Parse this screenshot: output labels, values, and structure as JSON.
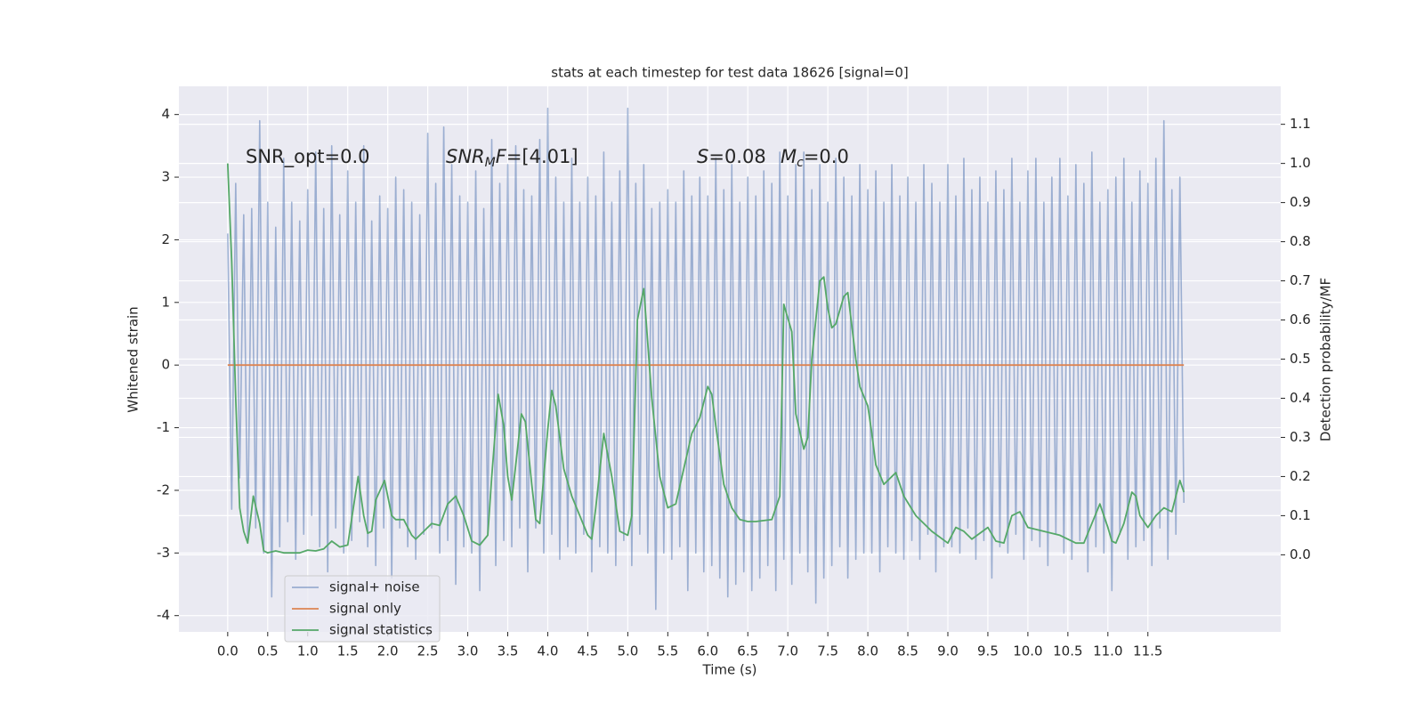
{
  "chart_data": {
    "type": "line",
    "title": "stats at each timestep for test data 18626 [signal=0]",
    "xlabel": "Time (s)",
    "ylabel": "Whitened strain",
    "y2label": "Detection probability/MF",
    "annotations": [
      [
        {
          "text": "SNR_opt=0.0"
        }
      ],
      [
        {
          "text": "SNR",
          "style": "italic"
        },
        {
          "text": "M",
          "style": "italic-sub"
        },
        {
          "text": "F",
          "style": "italic"
        },
        {
          "text": "=[4.01]"
        }
      ],
      [
        {
          "text": "S",
          "style": "italic"
        },
        {
          "text": "=0.08"
        }
      ],
      [
        {
          "text": "M",
          "style": "italic"
        },
        {
          "text": "c",
          "style": "italic-sub"
        },
        {
          "text": "=0.0"
        }
      ]
    ],
    "xlim": [
      -0.61,
      13.16
    ],
    "ylim": [
      -4.26,
      4.45
    ],
    "y2lim": [
      -0.197,
      1.197
    ],
    "xticks": [
      {
        "value": 0,
        "label": "0.0"
      },
      0.5,
      {
        "value": 1,
        "label": "1.0"
      },
      1.5,
      {
        "value": 2,
        "label": "2.0"
      },
      2.5,
      {
        "value": 3,
        "label": "3.0"
      },
      3.5,
      {
        "value": 4,
        "label": "4.0"
      },
      4.5,
      {
        "value": 5,
        "label": "5.0"
      },
      5.5,
      {
        "value": 6,
        "label": "6.0"
      },
      6.5,
      {
        "value": 7,
        "label": "7.0"
      },
      7.5,
      {
        "value": 8,
        "label": "8.0"
      },
      8.5,
      {
        "value": 9,
        "label": "9.0"
      },
      9.5,
      {
        "value": 10,
        "label": "10.0"
      },
      10.5,
      {
        "value": 11,
        "label": "11.0"
      },
      11.5
    ],
    "yticks": [
      -4,
      -3,
      -2,
      -1,
      0,
      1,
      2,
      3,
      4
    ],
    "y2ticks": [
      {
        "value": 0,
        "label": "0.0"
      },
      0.1,
      0.2,
      0.3,
      0.4,
      0.5,
      0.6,
      0.7,
      0.8,
      0.9,
      {
        "value": 1,
        "label": "1.0"
      },
      1.1
    ],
    "grid": true,
    "legend": "lower left",
    "series": [
      {
        "name": "signal+ noise",
        "color": "#4c72b0",
        "alpha": 0.5,
        "x": [
          0,
          0.05,
          0.1,
          0.15,
          0.2,
          0.25,
          0.3,
          0.35,
          0.4,
          0.45,
          0.5,
          0.55,
          0.6,
          0.65,
          0.7,
          0.75,
          0.8,
          0.85,
          0.9,
          0.95,
          1,
          1.05,
          1.1,
          1.15,
          1.2,
          1.25,
          1.3,
          1.35,
          1.4,
          1.45,
          1.5,
          1.55,
          1.6,
          1.65,
          1.7,
          1.75,
          1.8,
          1.85,
          1.9,
          1.95,
          2,
          2.05,
          2.1,
          2.15,
          2.2,
          2.25,
          2.3,
          2.35,
          2.4,
          2.45,
          2.5,
          2.55,
          2.6,
          2.65,
          2.7,
          2.75,
          2.8,
          2.85,
          2.9,
          2.95,
          3,
          3.05,
          3.1,
          3.15,
          3.2,
          3.25,
          3.3,
          3.35,
          3.4,
          3.45,
          3.5,
          3.55,
          3.6,
          3.65,
          3.7,
          3.75,
          3.8,
          3.85,
          3.9,
          3.95,
          4,
          4.05,
          4.1,
          4.15,
          4.2,
          4.25,
          4.3,
          4.35,
          4.4,
          4.45,
          4.5,
          4.55,
          4.6,
          4.65,
          4.7,
          4.75,
          4.8,
          4.85,
          4.9,
          4.95,
          5,
          5.05,
          5.1,
          5.15,
          5.2,
          5.25,
          5.3,
          5.35,
          5.4,
          5.45,
          5.5,
          5.55,
          5.6,
          5.65,
          5.7,
          5.75,
          5.8,
          5.85,
          5.9,
          5.95,
          6,
          6.05,
          6.1,
          6.15,
          6.2,
          6.25,
          6.3,
          6.35,
          6.4,
          6.45,
          6.5,
          6.55,
          6.6,
          6.65,
          6.7,
          6.75,
          6.8,
          6.85,
          6.9,
          6.95,
          7,
          7.05,
          7.1,
          7.15,
          7.2,
          7.25,
          7.3,
          7.35,
          7.4,
          7.45,
          7.5,
          7.55,
          7.6,
          7.65,
          7.7,
          7.75,
          7.8,
          7.85,
          7.9,
          7.95,
          8,
          8.05,
          8.1,
          8.15,
          8.2,
          8.25,
          8.3,
          8.35,
          8.4,
          8.45,
          8.5,
          8.55,
          8.6,
          8.65,
          8.7,
          8.75,
          8.8,
          8.85,
          8.9,
          8.95,
          9,
          9.05,
          9.1,
          9.15,
          9.2,
          9.25,
          9.3,
          9.35,
          9.4,
          9.45,
          9.5,
          9.55,
          9.6,
          9.65,
          9.7,
          9.75,
          9.8,
          9.85,
          9.9,
          9.95,
          10,
          10.05,
          10.1,
          10.15,
          10.2,
          10.25,
          10.3,
          10.35,
          10.4,
          10.45,
          10.5,
          10.55,
          10.6,
          10.65,
          10.7,
          10.75,
          10.8,
          10.85,
          10.9,
          10.95,
          11,
          11.05,
          11.1,
          11.15,
          11.2,
          11.25,
          11.3,
          11.35,
          11.4,
          11.45,
          11.5,
          11.55,
          11.6,
          11.65,
          11.7,
          11.75,
          11.8,
          11.85,
          11.9,
          11.95
        ],
        "values": [
          2.1,
          -2.3,
          2.9,
          -1.8,
          2.4,
          -2.8,
          2.5,
          -2.6,
          3.9,
          -3.0,
          2.6,
          -3.7,
          2.2,
          -2.9,
          3.3,
          -2.5,
          2.6,
          -3.1,
          2.3,
          -2.7,
          2.8,
          -2.4,
          3.4,
          -2.9,
          2.5,
          -3.3,
          3.5,
          -2.6,
          2.4,
          -3.0,
          3.1,
          -2.8,
          2.6,
          -2.5,
          3.5,
          -2.9,
          2.3,
          -3.2,
          2.7,
          -2.6,
          2.5,
          -3.4,
          3.0,
          -2.6,
          2.8,
          -2.9,
          2.6,
          -3.1,
          2.4,
          -2.7,
          3.7,
          -2.6,
          2.9,
          -3.0,
          3.8,
          -2.8,
          3.2,
          -3.5,
          2.7,
          -2.9,
          2.6,
          -3.0,
          3.1,
          -3.6,
          2.5,
          -2.7,
          3.6,
          -3.2,
          2.9,
          -2.8,
          3.2,
          -2.9,
          3.5,
          -2.6,
          2.8,
          -3.3,
          2.7,
          -2.6,
          3.6,
          -3.0,
          4.1,
          -2.7,
          3.0,
          -3.1,
          2.6,
          -2.9,
          3.3,
          -3.0,
          2.6,
          -2.7,
          3.0,
          -3.3,
          2.7,
          -2.9,
          3.4,
          -3.0,
          2.6,
          -3.2,
          3.1,
          -2.8,
          4.1,
          -3.2,
          2.9,
          -2.7,
          3.2,
          -3.0,
          2.5,
          -3.9,
          2.6,
          -3.0,
          2.8,
          -3.1,
          2.6,
          -2.9,
          3.1,
          -3.6,
          2.7,
          -3.0,
          3.0,
          -3.3,
          2.7,
          -3.2,
          3.3,
          -3.4,
          2.8,
          -3.7,
          3.2,
          -3.5,
          2.6,
          -3.3,
          3.0,
          -3.6,
          2.7,
          -3.4,
          3.1,
          -3.2,
          2.9,
          -3.6,
          3.4,
          -3.1,
          2.7,
          -3.5,
          3.2,
          -3.0,
          3.4,
          -3.3,
          2.8,
          -3.8,
          3.2,
          -3.4,
          2.6,
          -3.2,
          3.3,
          -2.9,
          3.0,
          -3.4,
          2.7,
          -3.1,
          3.2,
          -3.0,
          2.8,
          -3.0,
          3.1,
          -3.3,
          2.6,
          -2.9,
          3.2,
          -3.0,
          2.7,
          -3.1,
          3.0,
          -2.8,
          2.6,
          -3.1,
          3.2,
          -2.7,
          2.9,
          -3.3,
          2.6,
          -2.9,
          3.2,
          -2.9,
          2.7,
          -3.0,
          3.3,
          -2.6,
          2.8,
          -3.1,
          3.0,
          -2.8,
          2.6,
          -3.4,
          3.1,
          -2.9,
          2.8,
          -3.0,
          3.3,
          -2.7,
          2.6,
          -3.1,
          3.1,
          -2.8,
          3.3,
          -2.9,
          2.6,
          -3.2,
          3.0,
          -2.7,
          3.3,
          -3.0,
          2.7,
          -3.1,
          3.2,
          -2.8,
          2.9,
          -3.3,
          3.4,
          -2.9,
          2.6,
          -3.0,
          2.8,
          -3.6,
          3.0,
          -2.7,
          3.3,
          -3.1,
          2.6,
          -2.9,
          3.1,
          -2.8,
          2.9,
          -3.2,
          3.3,
          -2.6,
          3.9,
          -3.1,
          2.8,
          -2.7,
          3.0,
          -2.2
        ]
      },
      {
        "name": "signal only",
        "color": "#dd8452",
        "x": [
          0,
          11.95
        ],
        "values": [
          0,
          0
        ]
      },
      {
        "name": "signal statistics",
        "color": "#55a868",
        "axis": "y2",
        "x": [
          0,
          0.05,
          0.1,
          0.15,
          0.2,
          0.25,
          0.32,
          0.4,
          0.45,
          0.5,
          0.6,
          0.7,
          0.8,
          0.9,
          1.0,
          1.1,
          1.2,
          1.3,
          1.4,
          1.5,
          1.63,
          1.7,
          1.75,
          1.8,
          1.85,
          1.96,
          2.05,
          2.1,
          2.2,
          2.3,
          2.35,
          2.45,
          2.55,
          2.65,
          2.75,
          2.85,
          2.95,
          3.05,
          3.15,
          3.25,
          3.3,
          3.38,
          3.45,
          3.5,
          3.55,
          3.6,
          3.67,
          3.72,
          3.8,
          3.85,
          3.9,
          3.95,
          4.0,
          4.05,
          4.1,
          4.2,
          4.3,
          4.4,
          4.5,
          4.55,
          4.6,
          4.7,
          4.8,
          4.9,
          5.0,
          5.05,
          5.12,
          5.2,
          5.3,
          5.4,
          5.5,
          5.6,
          5.7,
          5.8,
          5.9,
          6.0,
          6.05,
          6.1,
          6.2,
          6.3,
          6.4,
          6.5,
          6.6,
          6.8,
          6.9,
          6.95,
          7.05,
          7.1,
          7.2,
          7.25,
          7.3,
          7.4,
          7.45,
          7.5,
          7.55,
          7.6,
          7.7,
          7.75,
          7.85,
          7.9,
          8.0,
          8.05,
          8.1,
          8.2,
          8.3,
          8.35,
          8.45,
          8.6,
          8.8,
          9.0,
          9.1,
          9.2,
          9.3,
          9.5,
          9.6,
          9.7,
          9.8,
          9.9,
          10.0,
          10.2,
          10.4,
          10.6,
          10.7,
          10.8,
          10.9,
          11.0,
          11.05,
          11.1,
          11.2,
          11.3,
          11.35,
          11.4,
          11.5,
          11.6,
          11.7,
          11.8,
          11.9,
          11.95
        ],
        "values": [
          1.0,
          0.75,
          0.4,
          0.12,
          0.06,
          0.03,
          0.15,
          0.08,
          0.01,
          0.005,
          0.01,
          0.005,
          0.005,
          0.005,
          0.012,
          0.01,
          0.015,
          0.035,
          0.02,
          0.025,
          0.2,
          0.1,
          0.055,
          0.06,
          0.14,
          0.19,
          0.1,
          0.09,
          0.09,
          0.05,
          0.04,
          0.06,
          0.08,
          0.075,
          0.13,
          0.15,
          0.1,
          0.035,
          0.025,
          0.05,
          0.2,
          0.41,
          0.33,
          0.2,
          0.14,
          0.23,
          0.36,
          0.34,
          0.18,
          0.09,
          0.08,
          0.2,
          0.32,
          0.42,
          0.38,
          0.22,
          0.15,
          0.1,
          0.05,
          0.04,
          0.12,
          0.31,
          0.2,
          0.06,
          0.05,
          0.1,
          0.6,
          0.68,
          0.4,
          0.2,
          0.12,
          0.13,
          0.22,
          0.31,
          0.35,
          0.43,
          0.41,
          0.33,
          0.18,
          0.12,
          0.09,
          0.085,
          0.085,
          0.09,
          0.15,
          0.64,
          0.57,
          0.36,
          0.27,
          0.3,
          0.5,
          0.7,
          0.71,
          0.63,
          0.58,
          0.59,
          0.66,
          0.67,
          0.5,
          0.43,
          0.38,
          0.31,
          0.23,
          0.18,
          0.2,
          0.21,
          0.15,
          0.1,
          0.06,
          0.03,
          0.07,
          0.06,
          0.04,
          0.07,
          0.035,
          0.03,
          0.1,
          0.11,
          0.07,
          0.06,
          0.05,
          0.03,
          0.03,
          0.08,
          0.13,
          0.07,
          0.035,
          0.03,
          0.08,
          0.16,
          0.15,
          0.1,
          0.07,
          0.1,
          0.12,
          0.11,
          0.19,
          0.16
        ]
      }
    ]
  }
}
